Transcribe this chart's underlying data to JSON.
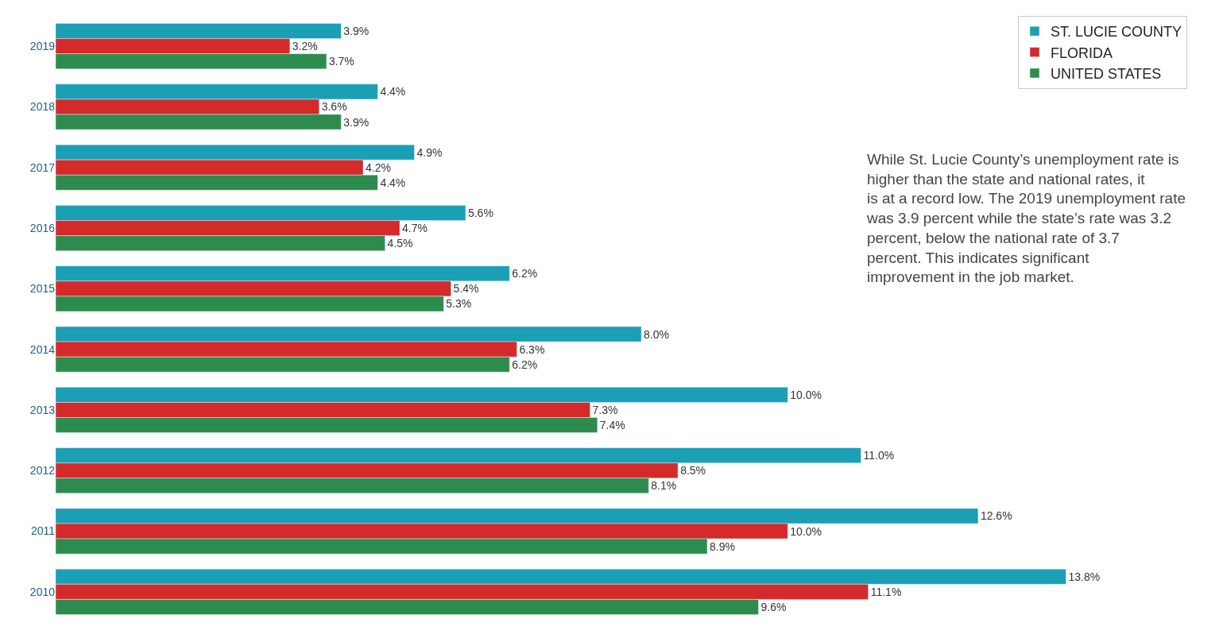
{
  "chart_data": {
    "type": "bar",
    "orientation": "horizontal",
    "categories": [
      "2019",
      "2018",
      "2017",
      "2016",
      "2015",
      "2014",
      "2013",
      "2012",
      "2011",
      "2010"
    ],
    "series": [
      {
        "name": "ST. LUCIE COUNTY",
        "color": "#1a9fb5",
        "values": [
          3.9,
          4.4,
          4.9,
          5.6,
          6.2,
          8.0,
          10.0,
          11.0,
          12.6,
          13.8
        ],
        "value_labels": [
          "3.9%",
          "4.4%",
          "4.9%",
          "5.6%",
          "6.2%",
          "8.0%",
          "10.0%",
          "11.0%",
          "12.6%",
          "13.8%"
        ]
      },
      {
        "name": "FLORIDA",
        "color": "#d42a2a",
        "values": [
          3.2,
          3.6,
          4.2,
          4.7,
          5.4,
          6.3,
          7.3,
          8.5,
          10.0,
          11.1
        ],
        "value_labels": [
          "3.2%",
          "3.6%",
          "4.2%",
          "4.7%",
          "5.4%",
          "6.3%",
          "7.3%",
          "8.5%",
          "10.0%",
          "11.1%"
        ]
      },
      {
        "name": "UNITED STATES",
        "color": "#2e8b4e",
        "values": [
          3.7,
          3.9,
          4.4,
          4.5,
          5.3,
          6.2,
          7.4,
          8.1,
          8.9,
          9.6
        ],
        "value_labels": [
          "3.7%",
          "3.9%",
          "4.4%",
          "4.5%",
          "5.3%",
          "6.2%",
          "7.4%",
          "8.1%",
          "8.9%",
          "9.6%"
        ]
      }
    ],
    "annotations": [
      "While St. Lucie County’s unemployment rate is higher than the state and national rates, it is at a record low. The 2019 unemployment rate was 3.9 percent while the state’s rate was 3.2 percent, below the national rate of 3.7 percent. This indicates significant improvement in the job market."
    ],
    "legend": "top right"
  }
}
